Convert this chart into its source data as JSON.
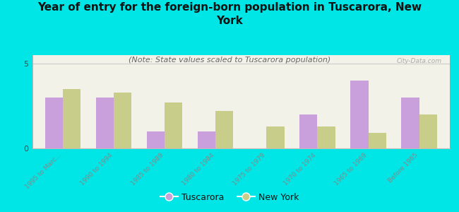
{
  "title": "Year of entry for the foreign-born population in Tuscarora, New\nYork",
  "subtitle": "(Note: State values scaled to Tuscarora population)",
  "categories": [
    "1995 to Marc...",
    "1990 to 1994",
    "1985 to 1989",
    "1980 to 1984",
    "1975 to 1979",
    "1970 to 1974",
    "1965 to 1969",
    "Before 1965"
  ],
  "tuscarora_values": [
    3.0,
    3.0,
    1.0,
    1.0,
    0.0,
    2.0,
    4.0,
    3.0
  ],
  "newyork_values": [
    3.5,
    3.3,
    2.7,
    2.2,
    1.3,
    1.3,
    0.9,
    2.0
  ],
  "tuscarora_color": "#c9a0dc",
  "newyork_color": "#c8cd8a",
  "background_color": "#00e5e5",
  "plot_bg_color": "#f2f2e8",
  "ylim": [
    0,
    5.5
  ],
  "yticks": [
    0,
    5
  ],
  "bar_width": 0.35,
  "watermark": "City-Data.com",
  "title_fontsize": 11,
  "subtitle_fontsize": 8,
  "tick_fontsize": 6.5,
  "legend_fontsize": 9
}
